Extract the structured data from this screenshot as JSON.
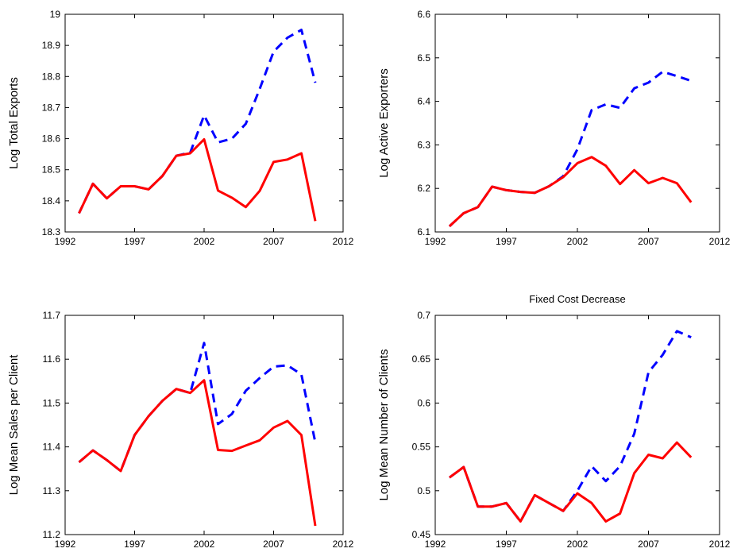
{
  "chart_data": [
    {
      "type": "line",
      "title": "",
      "xlabel": "",
      "ylabel": "Log Total Exports",
      "xlim": [
        1992,
        2012
      ],
      "ylim": [
        18.3,
        19
      ],
      "xticks": [
        "1992",
        "1997",
        "2002",
        "2007",
        "2012"
      ],
      "yticks": [
        "18.3",
        "18.4",
        "18.5",
        "18.6",
        "18.7",
        "18.8",
        "18.9",
        "19"
      ],
      "grid": false,
      "series": [
        {
          "color": "#0000ff",
          "style": "dashed",
          "x": [
            1993,
            1994,
            1995,
            1996,
            1997,
            1998,
            1999,
            2000,
            2001,
            2002,
            2003,
            2004,
            2005,
            2006,
            2007,
            2008,
            2009,
            2010
          ],
          "values": [
            18.36,
            18.455,
            18.408,
            18.447,
            18.447,
            18.437,
            18.48,
            18.545,
            18.555,
            18.675,
            18.588,
            18.6,
            18.648,
            18.76,
            18.88,
            18.925,
            18.95,
            18.78
          ]
        },
        {
          "color": "#ff0000",
          "style": "solid",
          "x": [
            1993,
            1994,
            1995,
            1996,
            1997,
            1998,
            1999,
            2000,
            2001,
            2002,
            2003,
            2004,
            2005,
            2006,
            2007,
            2008,
            2009,
            2010
          ],
          "values": [
            18.36,
            18.455,
            18.408,
            18.447,
            18.447,
            18.437,
            18.48,
            18.545,
            18.553,
            18.598,
            18.433,
            18.41,
            18.38,
            18.432,
            18.525,
            18.533,
            18.553,
            18.335
          ]
        }
      ]
    },
    {
      "type": "line",
      "title": "",
      "xlabel": "",
      "ylabel": "Log Active Exporters",
      "xlim": [
        1992,
        2012
      ],
      "ylim": [
        6.1,
        6.6
      ],
      "xticks": [
        "1992",
        "1997",
        "2002",
        "2007",
        "2012"
      ],
      "yticks": [
        "6.1",
        "6.2",
        "6.3",
        "6.4",
        "6.5",
        "6.6"
      ],
      "grid": false,
      "series": [
        {
          "color": "#0000ff",
          "style": "dashed",
          "x": [
            1993,
            1994,
            1995,
            1996,
            1997,
            1998,
            1999,
            2000,
            2001,
            2002,
            2003,
            2004,
            2005,
            2006,
            2007,
            2008,
            2009,
            2010
          ],
          "values": [
            6.113,
            6.143,
            6.157,
            6.204,
            6.196,
            6.192,
            6.19,
            6.205,
            6.228,
            6.29,
            6.38,
            6.393,
            6.385,
            6.43,
            6.443,
            6.468,
            6.458,
            6.447
          ]
        },
        {
          "color": "#ff0000",
          "style": "solid",
          "x": [
            1993,
            1994,
            1995,
            1996,
            1997,
            1998,
            1999,
            2000,
            2001,
            2002,
            2003,
            2004,
            2005,
            2006,
            2007,
            2008,
            2009,
            2010
          ],
          "values": [
            6.113,
            6.143,
            6.157,
            6.204,
            6.196,
            6.192,
            6.19,
            6.205,
            6.226,
            6.258,
            6.272,
            6.252,
            6.21,
            6.242,
            6.212,
            6.224,
            6.212,
            6.168
          ]
        }
      ]
    },
    {
      "type": "line",
      "title": "",
      "xlabel": "",
      "ylabel": "Log Mean Sales per Client",
      "xlim": [
        1992,
        2012
      ],
      "ylim": [
        11.2,
        11.7
      ],
      "xticks": [
        "1992",
        "1997",
        "2002",
        "2007",
        "2012"
      ],
      "yticks": [
        "11.2",
        "11.3",
        "11.4",
        "11.5",
        "11.6",
        "11.7"
      ],
      "grid": false,
      "series": [
        {
          "color": "#0000ff",
          "style": "dashed",
          "x": [
            1993,
            1994,
            1995,
            1996,
            1997,
            1998,
            1999,
            2000,
            2001,
            2002,
            2003,
            2004,
            2005,
            2006,
            2007,
            2008,
            2009,
            2010
          ],
          "values": [
            11.365,
            11.392,
            11.37,
            11.345,
            11.427,
            11.47,
            11.505,
            11.532,
            11.523,
            11.637,
            11.452,
            11.475,
            11.528,
            11.557,
            11.583,
            11.586,
            11.565,
            11.41
          ]
        },
        {
          "color": "#ff0000",
          "style": "solid",
          "x": [
            1993,
            1994,
            1995,
            1996,
            1997,
            1998,
            1999,
            2000,
            2001,
            2002,
            2003,
            2004,
            2005,
            2006,
            2007,
            2008,
            2009,
            2010
          ],
          "values": [
            11.365,
            11.392,
            11.37,
            11.345,
            11.427,
            11.47,
            11.505,
            11.532,
            11.523,
            11.552,
            11.393,
            11.391,
            11.403,
            11.415,
            11.444,
            11.459,
            11.427,
            11.22
          ]
        }
      ]
    },
    {
      "type": "line",
      "title": "Fixed Cost Decrease",
      "xlabel": "",
      "ylabel": "Log Mean Number of Clients",
      "xlim": [
        1992,
        2012
      ],
      "ylim": [
        0.45,
        0.7
      ],
      "xticks": [
        "1992",
        "1997",
        "2002",
        "2007",
        "2012"
      ],
      "yticks": [
        "0.45",
        "0.5",
        "0.55",
        "0.6",
        "0.65",
        "0.7"
      ],
      "grid": false,
      "series": [
        {
          "color": "#0000ff",
          "style": "dashed",
          "x": [
            1993,
            1994,
            1995,
            1996,
            1997,
            1998,
            1999,
            2000,
            2001,
            2002,
            2003,
            2004,
            2005,
            2006,
            2007,
            2008,
            2009,
            2010
          ],
          "values": [
            0.515,
            0.527,
            0.482,
            0.482,
            0.486,
            0.465,
            0.495,
            0.486,
            0.477,
            0.5,
            0.528,
            0.511,
            0.528,
            0.565,
            0.635,
            0.655,
            0.682,
            0.675
          ]
        },
        {
          "color": "#ff0000",
          "style": "solid",
          "x": [
            1993,
            1994,
            1995,
            1996,
            1997,
            1998,
            1999,
            2000,
            2001,
            2002,
            2003,
            2004,
            2005,
            2006,
            2007,
            2008,
            2009,
            2010
          ],
          "values": [
            0.515,
            0.527,
            0.482,
            0.482,
            0.486,
            0.465,
            0.495,
            0.486,
            0.477,
            0.497,
            0.486,
            0.465,
            0.474,
            0.52,
            0.541,
            0.537,
            0.555,
            0.538
          ]
        }
      ]
    }
  ]
}
